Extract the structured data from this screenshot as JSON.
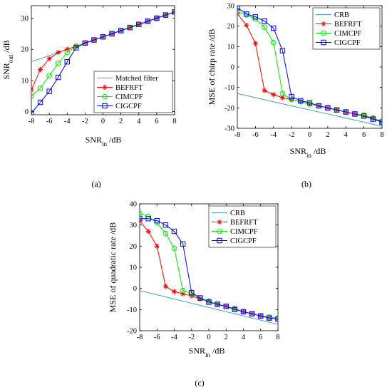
{
  "captions": [
    "(a)",
    "(b)",
    "(c)"
  ],
  "chart_data": [
    {
      "type": "line",
      "caption": "(a)",
      "title": "",
      "xlabel": "SNR_in /dB",
      "ylabel": "SNR_out /dB",
      "xlim": [
        -8,
        8
      ],
      "ylim": [
        -1,
        34
      ],
      "xticks": [
        -8,
        -6,
        -4,
        -2,
        0,
        2,
        4,
        6,
        8
      ],
      "yticks": [
        0,
        10,
        20,
        30
      ],
      "x": [
        -8,
        -7,
        -6,
        -5,
        -4,
        -3,
        -2,
        -1,
        0,
        1,
        2,
        3,
        4,
        5,
        6,
        7,
        8
      ],
      "legend_position": "bottom-right",
      "series": [
        {
          "name": "Matched filter",
          "color": "#4a9bd0",
          "marker": "none",
          "values": [
            16,
            17,
            18,
            19,
            20,
            21,
            22,
            23,
            24,
            25,
            26,
            27,
            28,
            29,
            30,
            31,
            32
          ]
        },
        {
          "name": "BEFRFT",
          "color": "#ff0000",
          "marker": "star",
          "values": [
            7,
            13.5,
            17,
            19,
            20,
            21,
            22,
            23,
            24,
            25,
            26,
            27,
            28,
            29,
            30,
            31,
            32
          ]
        },
        {
          "name": "CIMCPF",
          "color": "#00ee00",
          "marker": "circle",
          "values": [
            5,
            7.5,
            11.5,
            15.5,
            19,
            21,
            22,
            23,
            24,
            25,
            26,
            27,
            28,
            29,
            30,
            31,
            32
          ]
        },
        {
          "name": "CIGCPF",
          "color": "#0000ff",
          "marker": "square",
          "values": [
            -0.5,
            3,
            6.5,
            11,
            16,
            20.5,
            22,
            23,
            24,
            25,
            26,
            27,
            28,
            29,
            30,
            31,
            32
          ]
        }
      ]
    },
    {
      "type": "line",
      "caption": "(b)",
      "title": "",
      "xlabel": "SNR_in /dB",
      "ylabel": "MSE of chirp rate /dB",
      "xlim": [
        -8,
        8
      ],
      "ylim": [
        -30,
        30
      ],
      "xticks": [
        -8,
        -6,
        -4,
        -2,
        0,
        2,
        4,
        6,
        8
      ],
      "yticks": [
        -30,
        -20,
        -10,
        0,
        10,
        20,
        30
      ],
      "x": [
        -8,
        -7,
        -6,
        -5,
        -4,
        -3,
        -2,
        -1,
        0,
        1,
        2,
        3,
        4,
        5,
        6,
        7,
        8
      ],
      "legend_position": "top-right",
      "series": [
        {
          "name": "CRB",
          "color": "#4a9bd0",
          "marker": "none",
          "values": [
            -13,
            -14,
            -15,
            -16,
            -17,
            -18,
            -19,
            -20,
            -21,
            -22,
            -23,
            -24,
            -25,
            -26,
            -27,
            -28,
            -29
          ]
        },
        {
          "name": "BEFRFT",
          "color": "#ff0000",
          "marker": "star",
          "values": [
            26,
            20.5,
            11.5,
            -11.5,
            -13.5,
            -15,
            -16,
            -17,
            -18,
            -19,
            -20,
            -21,
            -22,
            -23,
            -24,
            -25,
            -27
          ]
        },
        {
          "name": "CIMCPF",
          "color": "#00ee00",
          "marker": "circle",
          "values": [
            27,
            25.5,
            23.5,
            19.5,
            12,
            -13,
            -16,
            -17,
            -18,
            -19,
            -20,
            -21,
            -22,
            -23,
            -23.5,
            -25,
            -26.5
          ]
        },
        {
          "name": "CIGCPF",
          "color": "#0000ff",
          "marker": "square",
          "values": [
            29,
            26,
            24.5,
            22.5,
            19,
            8,
            -14.5,
            -16.5,
            -17.5,
            -19,
            -20,
            -21,
            -22,
            -23,
            -24,
            -25.5,
            -27
          ]
        }
      ]
    },
    {
      "type": "line",
      "caption": "(c)",
      "title": "",
      "xlabel": "SNR_in /dB",
      "ylabel": "MSE of quadratic rate /dB",
      "xlim": [
        -8,
        8
      ],
      "ylim": [
        -20,
        40
      ],
      "xticks": [
        -8,
        -6,
        -4,
        -2,
        0,
        2,
        4,
        6,
        8
      ],
      "yticks": [
        -20,
        -10,
        0,
        10,
        20,
        30,
        40
      ],
      "x": [
        -8,
        -7,
        -6,
        -5,
        -4,
        -3,
        -2,
        -1,
        0,
        1,
        2,
        3,
        4,
        5,
        6,
        7,
        8
      ],
      "legend_position": "top-right",
      "series": [
        {
          "name": "CRB",
          "color": "#4a9bd0",
          "marker": "none",
          "values": [
            -1,
            -2,
            -3,
            -4,
            -5,
            -6,
            -7,
            -8,
            -9,
            -10,
            -11,
            -12,
            -13,
            -14,
            -15,
            -16,
            -17
          ]
        },
        {
          "name": "BEFRFT",
          "color": "#ff0000",
          "marker": "star",
          "values": [
            32,
            27,
            20,
            1,
            -1.5,
            -2.5,
            -3.5,
            -5,
            -6,
            -7.5,
            -8.5,
            -9.5,
            -11,
            -12,
            -13,
            -14,
            -14.5
          ]
        },
        {
          "name": "CIMCPF",
          "color": "#00ee00",
          "marker": "circle",
          "values": [
            35.5,
            34,
            31,
            26,
            19,
            -1,
            -2.5,
            -4.5,
            -6,
            -7.5,
            -8.5,
            -9.5,
            -11,
            -12,
            -13,
            -13.5,
            -14
          ]
        },
        {
          "name": "CIGCPF",
          "color": "#0000ff",
          "marker": "square",
          "values": [
            33,
            33,
            32,
            30,
            27,
            21,
            -2,
            -4.5,
            -6.5,
            -7.5,
            -8.5,
            -10,
            -11,
            -12,
            -13,
            -14,
            -14.5
          ]
        }
      ]
    }
  ]
}
